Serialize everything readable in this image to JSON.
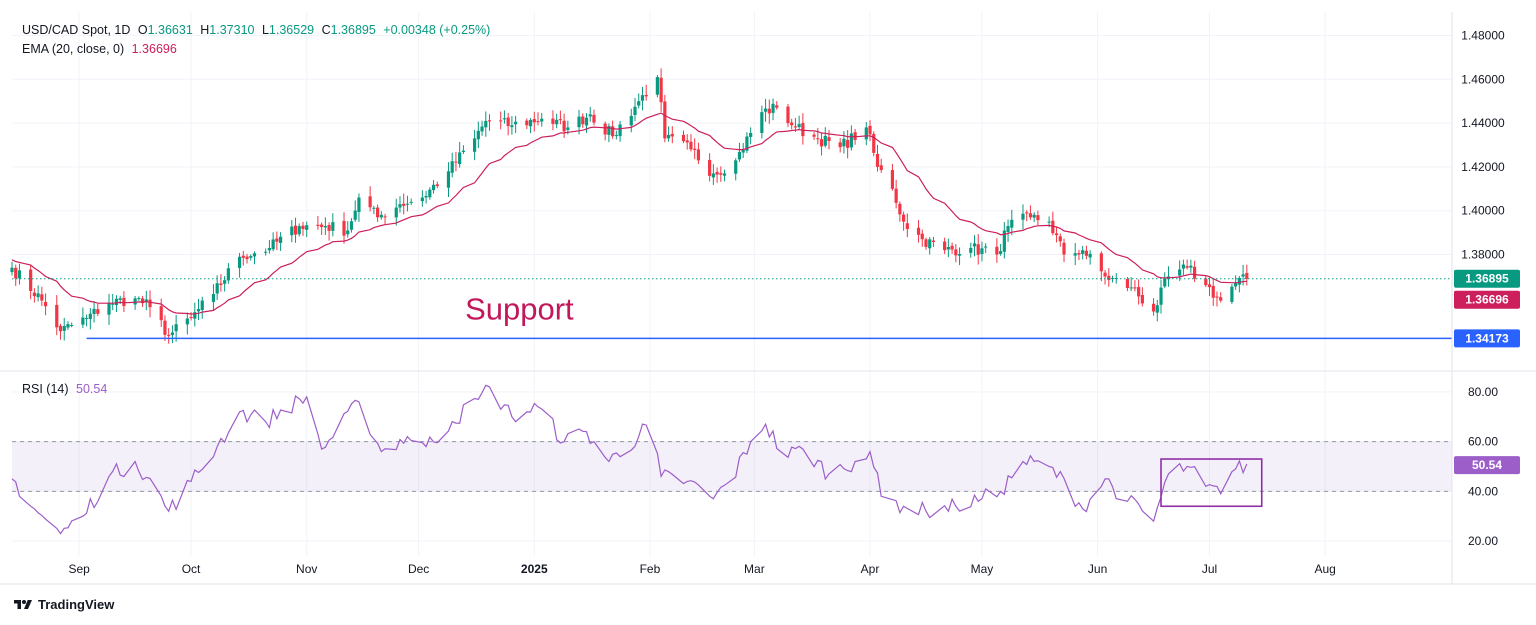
{
  "header": {
    "symbol": "USD/CAD Spot, 1D",
    "o_label": "O",
    "o": "1.36631",
    "h_label": "H",
    "h": "1.37310",
    "l_label": "L",
    "l": "1.36529",
    "c_label": "C",
    "c": "1.36895",
    "change": "+0.00348 (+0.25%)"
  },
  "ema_legend": {
    "label": "EMA (20, close, 0)",
    "value": "1.36696"
  },
  "rsi_legend": {
    "label": "RSI (14)",
    "value": "50.54"
  },
  "footer": {
    "brand": "TradingView"
  },
  "annotation": "Support",
  "colors": {
    "up": "#089981",
    "down": "#f23645",
    "ema": "#cc1f5c",
    "rsi": "#9c5ec9",
    "support": "#2962ff"
  },
  "chart_data": [
    {
      "type": "candlestick",
      "title": "USD/CAD Spot, 1D",
      "x_axis": {
        "ticks": [
          {
            "label": "Sep",
            "date": "2024-09-01"
          },
          {
            "label": "Oct",
            "date": "2024-10-01"
          },
          {
            "label": "Nov",
            "date": "2024-11-01"
          },
          {
            "label": "Dec",
            "date": "2024-12-01"
          },
          {
            "label": "2025",
            "date": "2025-01-01",
            "bold": true
          },
          {
            "label": "Feb",
            "date": "2025-02-01"
          },
          {
            "label": "Mar",
            "date": "2025-03-01"
          },
          {
            "label": "Apr",
            "date": "2025-04-01"
          },
          {
            "label": "May",
            "date": "2025-05-01"
          },
          {
            "label": "Jun",
            "date": "2025-06-01"
          },
          {
            "label": "Jul",
            "date": "2025-07-01"
          },
          {
            "label": "Aug",
            "date": "2025-08-01"
          }
        ],
        "range": [
          "2024-08-14",
          "2025-09-04"
        ]
      },
      "y_axis": {
        "ticks": [
          "1.48000",
          "1.46000",
          "1.44000",
          "1.42000",
          "1.40000",
          "1.38000"
        ],
        "range": [
          1.3273,
          1.4907
        ]
      },
      "price_labels": {
        "last": "1.36895",
        "ema": "1.36696",
        "support": "1.34173"
      },
      "support_level": 1.34173,
      "last_price": 1.36895,
      "key_points": [
        {
          "date": "2024-08-14",
          "close": 1.374
        },
        {
          "date": "2024-08-22",
          "close": 1.359
        },
        {
          "date": "2024-08-27",
          "close": 1.345
        },
        {
          "date": "2024-09-03",
          "close": 1.351
        },
        {
          "date": "2024-09-09",
          "close": 1.358
        },
        {
          "date": "2024-09-16",
          "close": 1.36
        },
        {
          "date": "2024-09-20",
          "close": 1.356
        },
        {
          "date": "2024-09-25",
          "close": 1.343
        },
        {
          "date": "2024-10-01",
          "close": 1.351
        },
        {
          "date": "2024-10-07",
          "close": 1.362
        },
        {
          "date": "2024-10-14",
          "close": 1.379
        },
        {
          "date": "2024-10-22",
          "close": 1.383
        },
        {
          "date": "2024-10-30",
          "close": 1.393
        },
        {
          "date": "2024-11-06",
          "close": 1.393
        },
        {
          "date": "2024-11-12",
          "close": 1.391
        },
        {
          "date": "2024-11-15",
          "close": 1.406
        },
        {
          "date": "2024-11-20",
          "close": 1.397
        },
        {
          "date": "2024-11-26",
          "close": 1.403
        },
        {
          "date": "2024-12-02",
          "close": 1.406
        },
        {
          "date": "2024-12-09",
          "close": 1.418
        },
        {
          "date": "2024-12-16",
          "close": 1.433
        },
        {
          "date": "2024-12-19",
          "close": 1.441
        },
        {
          "date": "2024-12-26",
          "close": 1.439
        },
        {
          "date": "2025-01-03",
          "close": 1.442
        },
        {
          "date": "2025-01-10",
          "close": 1.438
        },
        {
          "date": "2025-01-16",
          "close": 1.444
        },
        {
          "date": "2025-01-22",
          "close": 1.434
        },
        {
          "date": "2025-01-29",
          "close": 1.45
        },
        {
          "date": "2025-02-03",
          "close": 1.461
        },
        {
          "date": "2025-02-05",
          "close": 1.433
        },
        {
          "date": "2025-02-12",
          "close": 1.428
        },
        {
          "date": "2025-02-18",
          "close": 1.417
        },
        {
          "date": "2025-02-24",
          "close": 1.423
        },
        {
          "date": "2025-03-03",
          "close": 1.445
        },
        {
          "date": "2025-03-07",
          "close": 1.447
        },
        {
          "date": "2025-03-12",
          "close": 1.438
        },
        {
          "date": "2025-03-18",
          "close": 1.433
        },
        {
          "date": "2025-03-24",
          "close": 1.429
        },
        {
          "date": "2025-03-31",
          "close": 1.438
        },
        {
          "date": "2025-04-03",
          "close": 1.42
        },
        {
          "date": "2025-04-07",
          "close": 1.41
        },
        {
          "date": "2025-04-10",
          "close": 1.395
        },
        {
          "date": "2025-04-15",
          "close": 1.387
        },
        {
          "date": "2025-04-21",
          "close": 1.382
        },
        {
          "date": "2025-04-28",
          "close": 1.383
        },
        {
          "date": "2025-05-05",
          "close": 1.38
        },
        {
          "date": "2025-05-08",
          "close": 1.393
        },
        {
          "date": "2025-05-14",
          "close": 1.397
        },
        {
          "date": "2025-05-19",
          "close": 1.395
        },
        {
          "date": "2025-05-23",
          "close": 1.38
        },
        {
          "date": "2025-05-28",
          "close": 1.382
        },
        {
          "date": "2025-06-03",
          "close": 1.37
        },
        {
          "date": "2025-06-10",
          "close": 1.365
        },
        {
          "date": "2025-06-16",
          "close": 1.354
        },
        {
          "date": "2025-06-20",
          "close": 1.37
        },
        {
          "date": "2025-06-25",
          "close": 1.374
        },
        {
          "date": "2025-06-30",
          "close": 1.366
        },
        {
          "date": "2025-07-04",
          "close": 1.359
        },
        {
          "date": "2025-07-08",
          "close": 1.367
        },
        {
          "date": "2025-07-11",
          "close": 1.3689
        }
      ]
    },
    {
      "type": "line",
      "title": "RSI (14)",
      "y_axis": {
        "ticks": [
          "80.00",
          "60.00",
          "40.00",
          "20.00"
        ],
        "range": [
          14,
          88
        ]
      },
      "band": [
        40,
        60
      ],
      "last_value": "50.54",
      "highlight_box": {
        "from": "2025-06-18",
        "to": "2025-07-15",
        "y_low": 34,
        "y_high": 53
      },
      "series": [
        {
          "values": [
            {
              "date": "2024-08-14",
              "value": 45
            },
            {
              "date": "2024-08-20",
              "value": 33
            },
            {
              "date": "2024-08-27",
              "value": 23
            },
            {
              "date": "2024-09-02",
              "value": 30
            },
            {
              "date": "2024-09-09",
              "value": 46
            },
            {
              "date": "2024-09-16",
              "value": 52
            },
            {
              "date": "2024-09-22",
              "value": 40
            },
            {
              "date": "2024-09-25",
              "value": 32
            },
            {
              "date": "2024-10-01",
              "value": 44
            },
            {
              "date": "2024-10-08",
              "value": 58
            },
            {
              "date": "2024-10-14",
              "value": 72
            },
            {
              "date": "2024-10-21",
              "value": 68
            },
            {
              "date": "2024-10-27",
              "value": 74
            },
            {
              "date": "2024-11-01",
              "value": 78
            },
            {
              "date": "2024-11-05",
              "value": 57
            },
            {
              "date": "2024-11-09",
              "value": 64
            },
            {
              "date": "2024-11-15",
              "value": 76
            },
            {
              "date": "2024-11-21",
              "value": 56
            },
            {
              "date": "2024-11-28",
              "value": 62
            },
            {
              "date": "2024-12-03",
              "value": 58
            },
            {
              "date": "2024-12-10",
              "value": 68
            },
            {
              "date": "2024-12-17",
              "value": 77
            },
            {
              "date": "2024-12-20",
              "value": 82
            },
            {
              "date": "2024-12-26",
              "value": 70
            },
            {
              "date": "2025-01-02",
              "value": 74
            },
            {
              "date": "2025-01-09",
              "value": 60
            },
            {
              "date": "2025-01-15",
              "value": 64
            },
            {
              "date": "2025-01-21",
              "value": 52
            },
            {
              "date": "2025-01-26",
              "value": 58
            },
            {
              "date": "2025-02-01",
              "value": 67
            },
            {
              "date": "2025-02-04",
              "value": 46
            },
            {
              "date": "2025-02-11",
              "value": 44
            },
            {
              "date": "2025-02-18",
              "value": 37
            },
            {
              "date": "2025-02-23",
              "value": 45
            },
            {
              "date": "2025-02-28",
              "value": 60
            },
            {
              "date": "2025-03-04",
              "value": 67
            },
            {
              "date": "2025-03-09",
              "value": 54
            },
            {
              "date": "2025-03-14",
              "value": 57
            },
            {
              "date": "2025-03-21",
              "value": 47
            },
            {
              "date": "2025-03-28",
              "value": 52
            },
            {
              "date": "2025-04-01",
              "value": 56
            },
            {
              "date": "2025-04-04",
              "value": 38
            },
            {
              "date": "2025-04-10",
              "value": 34
            },
            {
              "date": "2025-04-16",
              "value": 32
            },
            {
              "date": "2025-04-24",
              "value": 34
            },
            {
              "date": "2025-05-01",
              "value": 37
            },
            {
              "date": "2025-05-06",
              "value": 40
            },
            {
              "date": "2025-05-12",
              "value": 52
            },
            {
              "date": "2025-05-19",
              "value": 50
            },
            {
              "date": "2025-05-24",
              "value": 42
            },
            {
              "date": "2025-05-28",
              "value": 33
            },
            {
              "date": "2025-06-03",
              "value": 45
            },
            {
              "date": "2025-06-09",
              "value": 36
            },
            {
              "date": "2025-06-14",
              "value": 31
            },
            {
              "date": "2025-06-16",
              "value": 28
            },
            {
              "date": "2025-06-20",
              "value": 47
            },
            {
              "date": "2025-06-25",
              "value": 50
            },
            {
              "date": "2025-06-30",
              "value": 42
            },
            {
              "date": "2025-07-04",
              "value": 39
            },
            {
              "date": "2025-07-08",
              "value": 49
            },
            {
              "date": "2025-07-11",
              "value": 51
            }
          ]
        }
      ]
    }
  ]
}
